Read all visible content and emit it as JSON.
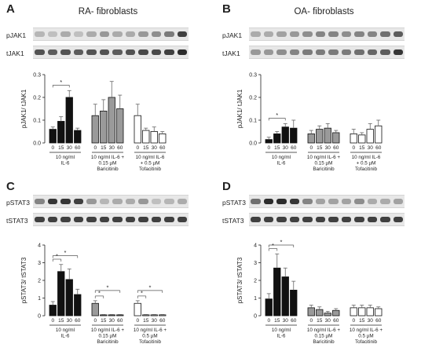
{
  "colors": {
    "black": "#111111",
    "gray": "#9a9a9a",
    "white": "#ffffff"
  },
  "panels": [
    {
      "letter": "A",
      "title": "RA- fibroblasts",
      "blots": [
        {
          "label": "pJAK1",
          "intensities": [
            0.25,
            0.2,
            0.3,
            0.2,
            0.3,
            0.4,
            0.3,
            0.3,
            0.4,
            0.45,
            0.55,
            0.85
          ]
        },
        {
          "label": "tJAK1",
          "intensities": [
            0.75,
            0.7,
            0.75,
            0.7,
            0.75,
            0.75,
            0.7,
            0.75,
            0.8,
            0.8,
            0.85,
            0.95
          ]
        }
      ]
    },
    {
      "letter": "B",
      "title": "OA- fibroblasts",
      "blots": [
        {
          "label": "pJAK1",
          "intensities": [
            0.3,
            0.3,
            0.35,
            0.4,
            0.45,
            0.5,
            0.5,
            0.45,
            0.5,
            0.5,
            0.6,
            0.7
          ]
        },
        {
          "label": "tJAK1",
          "intensities": [
            0.4,
            0.4,
            0.45,
            0.5,
            0.55,
            0.55,
            0.55,
            0.55,
            0.6,
            0.65,
            0.7,
            0.9
          ]
        }
      ]
    },
    {
      "letter": "C",
      "title": "",
      "blots": [
        {
          "label": "pSTAT3",
          "intensities": [
            0.5,
            0.9,
            0.9,
            0.85,
            0.4,
            0.25,
            0.3,
            0.3,
            0.4,
            0.2,
            0.25,
            0.3
          ]
        },
        {
          "label": "tSTAT3",
          "intensities": [
            0.85,
            0.85,
            0.85,
            0.85,
            0.85,
            0.85,
            0.85,
            0.85,
            0.85,
            0.85,
            0.85,
            0.85
          ]
        }
      ]
    },
    {
      "letter": "D",
      "title": "",
      "blots": [
        {
          "label": "pSTAT3",
          "intensities": [
            0.6,
            0.95,
            0.95,
            0.9,
            0.5,
            0.35,
            0.35,
            0.35,
            0.45,
            0.3,
            0.3,
            0.35
          ]
        },
        {
          "label": "tSTAT3",
          "intensities": [
            0.85,
            0.85,
            0.85,
            0.85,
            0.85,
            0.85,
            0.85,
            0.85,
            0.85,
            0.85,
            0.85,
            0.85
          ]
        }
      ]
    }
  ],
  "chart_data": [
    {
      "type": "bar",
      "panel": "A",
      "ylabel": "pJAK1/ tJAK1",
      "ylim": [
        0,
        0.3
      ],
      "yticks": [
        "0.0",
        "0.1",
        "0.2",
        "0.3"
      ],
      "categories": [
        "0",
        "15",
        "30",
        "60"
      ],
      "series": [
        {
          "values": [
            0.06,
            0.095,
            0.2,
            0.055
          ],
          "errors": [
            0.01,
            0.02,
            0.03,
            0.01
          ],
          "color": "black"
        },
        {
          "values": [
            0.12,
            0.14,
            0.2,
            0.15
          ],
          "errors": [
            0.05,
            0.05,
            0.07,
            0.06
          ],
          "color": "gray"
        },
        {
          "values": [
            0.12,
            0.055,
            0.05,
            0.04
          ],
          "errors": [
            0.05,
            0.01,
            0.02,
            0.01
          ],
          "color": "white"
        }
      ],
      "group_labels": [
        [
          "10 ng/ml",
          "IL-6"
        ],
        [
          "10 ng/ml IL-6 +",
          "0.15 µM",
          "Baricitinib"
        ],
        [
          "10 ng/ml IL-6",
          "+ 0.5 µM",
          "Tofacitinib"
        ]
      ],
      "significance": [
        {
          "from": 0,
          "to": 2,
          "symbol": "*"
        }
      ]
    },
    {
      "type": "bar",
      "panel": "B",
      "ylabel": "pJAK1/ tJAK1",
      "ylim": [
        0,
        0.3
      ],
      "yticks": [
        "0.0",
        "0.1",
        "0.2",
        "0.3"
      ],
      "categories": [
        "0",
        "15",
        "30",
        "60"
      ],
      "series": [
        {
          "values": [
            0.015,
            0.04,
            0.07,
            0.065
          ],
          "errors": [
            0.01,
            0.01,
            0.015,
            0.035
          ],
          "color": "black"
        },
        {
          "values": [
            0.04,
            0.06,
            0.065,
            0.045
          ],
          "errors": [
            0.015,
            0.015,
            0.02,
            0.01
          ],
          "color": "gray"
        },
        {
          "values": [
            0.04,
            0.035,
            0.06,
            0.075
          ],
          "errors": [
            0.02,
            0.01,
            0.025,
            0.025
          ],
          "color": "white"
        }
      ],
      "group_labels": [
        [
          "10 ng/ml",
          "IL-6"
        ],
        [
          "10 ng/ml IL-6 +",
          "0.15 µM",
          "Baricitinib"
        ],
        [
          "10 ng/ml IL-6",
          "+ 0.5 µM",
          "Tofacitinib"
        ]
      ],
      "significance": [
        {
          "from": 0,
          "to": 2,
          "symbol": "*"
        }
      ]
    },
    {
      "type": "bar",
      "panel": "C",
      "ylabel": "pSTAT3/ tSTAT3",
      "ylim": [
        0,
        4
      ],
      "yticks": [
        "0",
        "1",
        "2",
        "3",
        "4"
      ],
      "categories": [
        "0",
        "15",
        "30",
        "60"
      ],
      "series": [
        {
          "values": [
            0.6,
            2.5,
            2.05,
            1.2
          ],
          "errors": [
            0.2,
            0.4,
            0.6,
            0.3
          ],
          "color": "black"
        },
        {
          "values": [
            0.7,
            0.05,
            0.05,
            0.05
          ],
          "errors": [
            0.15,
            0.02,
            0.02,
            0.02
          ],
          "color": "gray"
        },
        {
          "values": [
            0.7,
            0.05,
            0.05,
            0.05
          ],
          "errors": [
            0.15,
            0.02,
            0.02,
            0.02
          ],
          "color": "white"
        }
      ],
      "group_labels": [
        [
          "10 ng/ml",
          "IL-6"
        ],
        [
          "10 ng/ml IL-6 +",
          "0.15 µM",
          "Baricitinib"
        ],
        [
          "10 ng/ml IL-6 +",
          "0.5 µM",
          "Tofacitinib"
        ]
      ],
      "significance": [
        {
          "from": 0,
          "to": 1,
          "symbol": "*",
          "group": 0,
          "level": 0
        },
        {
          "from": 0,
          "to": 3,
          "symbol": "*",
          "group": 0,
          "level": 1
        },
        {
          "from": 0,
          "to": 1,
          "symbol": "*",
          "group": 1,
          "level": 0
        },
        {
          "from": 0,
          "to": 3,
          "symbol": "*",
          "group": 1,
          "level": 1
        },
        {
          "from": 0,
          "to": 1,
          "symbol": "*",
          "group": 2,
          "level": 0
        },
        {
          "from": 0,
          "to": 3,
          "symbol": "*",
          "group": 2,
          "level": 1
        }
      ]
    },
    {
      "type": "bar",
      "panel": "D",
      "ylabel": "pSTAT3/ tSTAT3",
      "ylim": [
        0,
        4
      ],
      "yticks": [
        "0",
        "1",
        "2",
        "3",
        "4"
      ],
      "categories": [
        "0",
        "15",
        "30",
        "60"
      ],
      "series": [
        {
          "values": [
            0.95,
            2.7,
            2.2,
            1.45
          ],
          "errors": [
            0.3,
            0.8,
            0.5,
            0.5
          ],
          "color": "black"
        },
        {
          "values": [
            0.45,
            0.35,
            0.15,
            0.3
          ],
          "errors": [
            0.15,
            0.15,
            0.1,
            0.1
          ],
          "color": "gray"
        },
        {
          "values": [
            0.45,
            0.45,
            0.45,
            0.4
          ],
          "errors": [
            0.15,
            0.15,
            0.15,
            0.1
          ],
          "color": "white"
        }
      ],
      "group_labels": [
        [
          "10 ng/ml",
          "IL-6"
        ],
        [
          "10 ng/ml IL-6 +",
          "0.15 µM",
          "Baricitinib"
        ],
        [
          "10 ng/ml IL-6 +",
          "0.5 µM",
          "Tofacitinib"
        ]
      ],
      "significance": [
        {
          "from": 0,
          "to": 1,
          "symbol": "*",
          "group": 0,
          "level": 0
        },
        {
          "from": 0,
          "to": 3,
          "symbol": "*",
          "group": 0,
          "level": 1
        }
      ]
    }
  ]
}
